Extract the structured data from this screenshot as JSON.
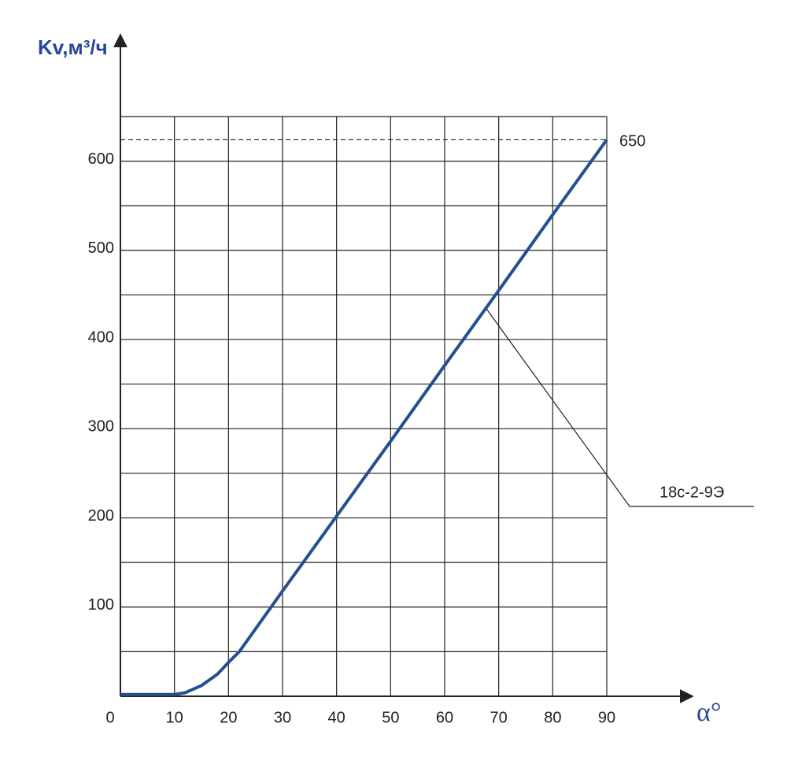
{
  "chart_data": {
    "type": "line",
    "x_label": "α°",
    "y_label": "Kv,м³/ч",
    "x": [
      0,
      10,
      12,
      15,
      18,
      20,
      22,
      30,
      40,
      50,
      60,
      70,
      80,
      90
    ],
    "series": [
      {
        "name": "18с-2-9Э",
        "color": "#25508f",
        "values": [
          2,
          2,
          4,
          12,
          25,
          38,
          50,
          118,
          202,
          286,
          371,
          455,
          540,
          624
        ]
      }
    ],
    "xlim": [
      0,
      90
    ],
    "ylim": [
      0,
      650
    ],
    "xticks": [
      0,
      10,
      20,
      30,
      40,
      50,
      60,
      70,
      80,
      90
    ],
    "yticks": [
      100,
      200,
      300,
      400,
      500,
      600
    ],
    "minor_yticks": [
      50,
      150,
      250,
      350,
      450,
      550,
      650
    ],
    "grid": true,
    "annotation": "650"
  }
}
